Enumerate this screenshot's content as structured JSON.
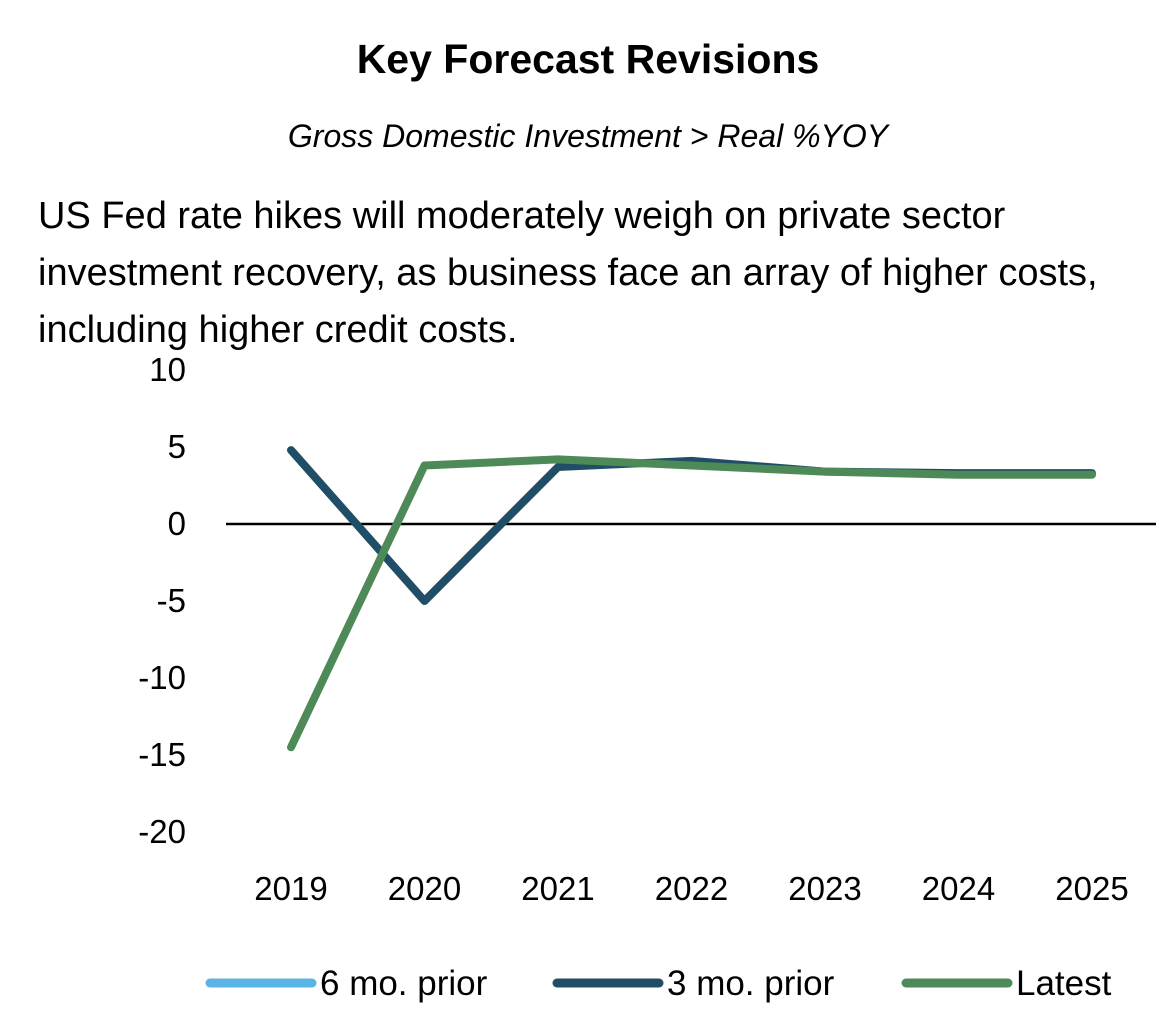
{
  "chart_data": {
    "type": "line",
    "title": "Key Forecast Revisions",
    "subtitle": "Gross Domestic Investment > Real %YOY",
    "description": "US Fed rate hikes will moderately weigh on private sector investment recovery, as business face an array of higher costs, including higher credit costs.",
    "xlabel": "",
    "ylabel": "",
    "ylim": [
      -20,
      10
    ],
    "yticks": [
      10,
      5,
      0,
      -5,
      -10,
      -15,
      -20
    ],
    "categories": [
      "2019",
      "2020",
      "2021",
      "2022",
      "2023",
      "2024",
      "2025"
    ],
    "series": [
      {
        "name": "6 mo. prior",
        "color": "#5bb4e5",
        "values": [
          null,
          null,
          null,
          null,
          null,
          null,
          null
        ]
      },
      {
        "name": "3 mo. prior",
        "color": "#1f4e66",
        "values": [
          4.8,
          -5.0,
          3.7,
          4.1,
          3.4,
          3.3,
          3.3
        ]
      },
      {
        "name": "Latest",
        "color": "#4e8a57",
        "values": [
          -14.5,
          3.8,
          4.2,
          3.8,
          3.4,
          3.2,
          3.2
        ]
      }
    ],
    "grid": false,
    "zero_line": true,
    "legend_position": "bottom"
  }
}
